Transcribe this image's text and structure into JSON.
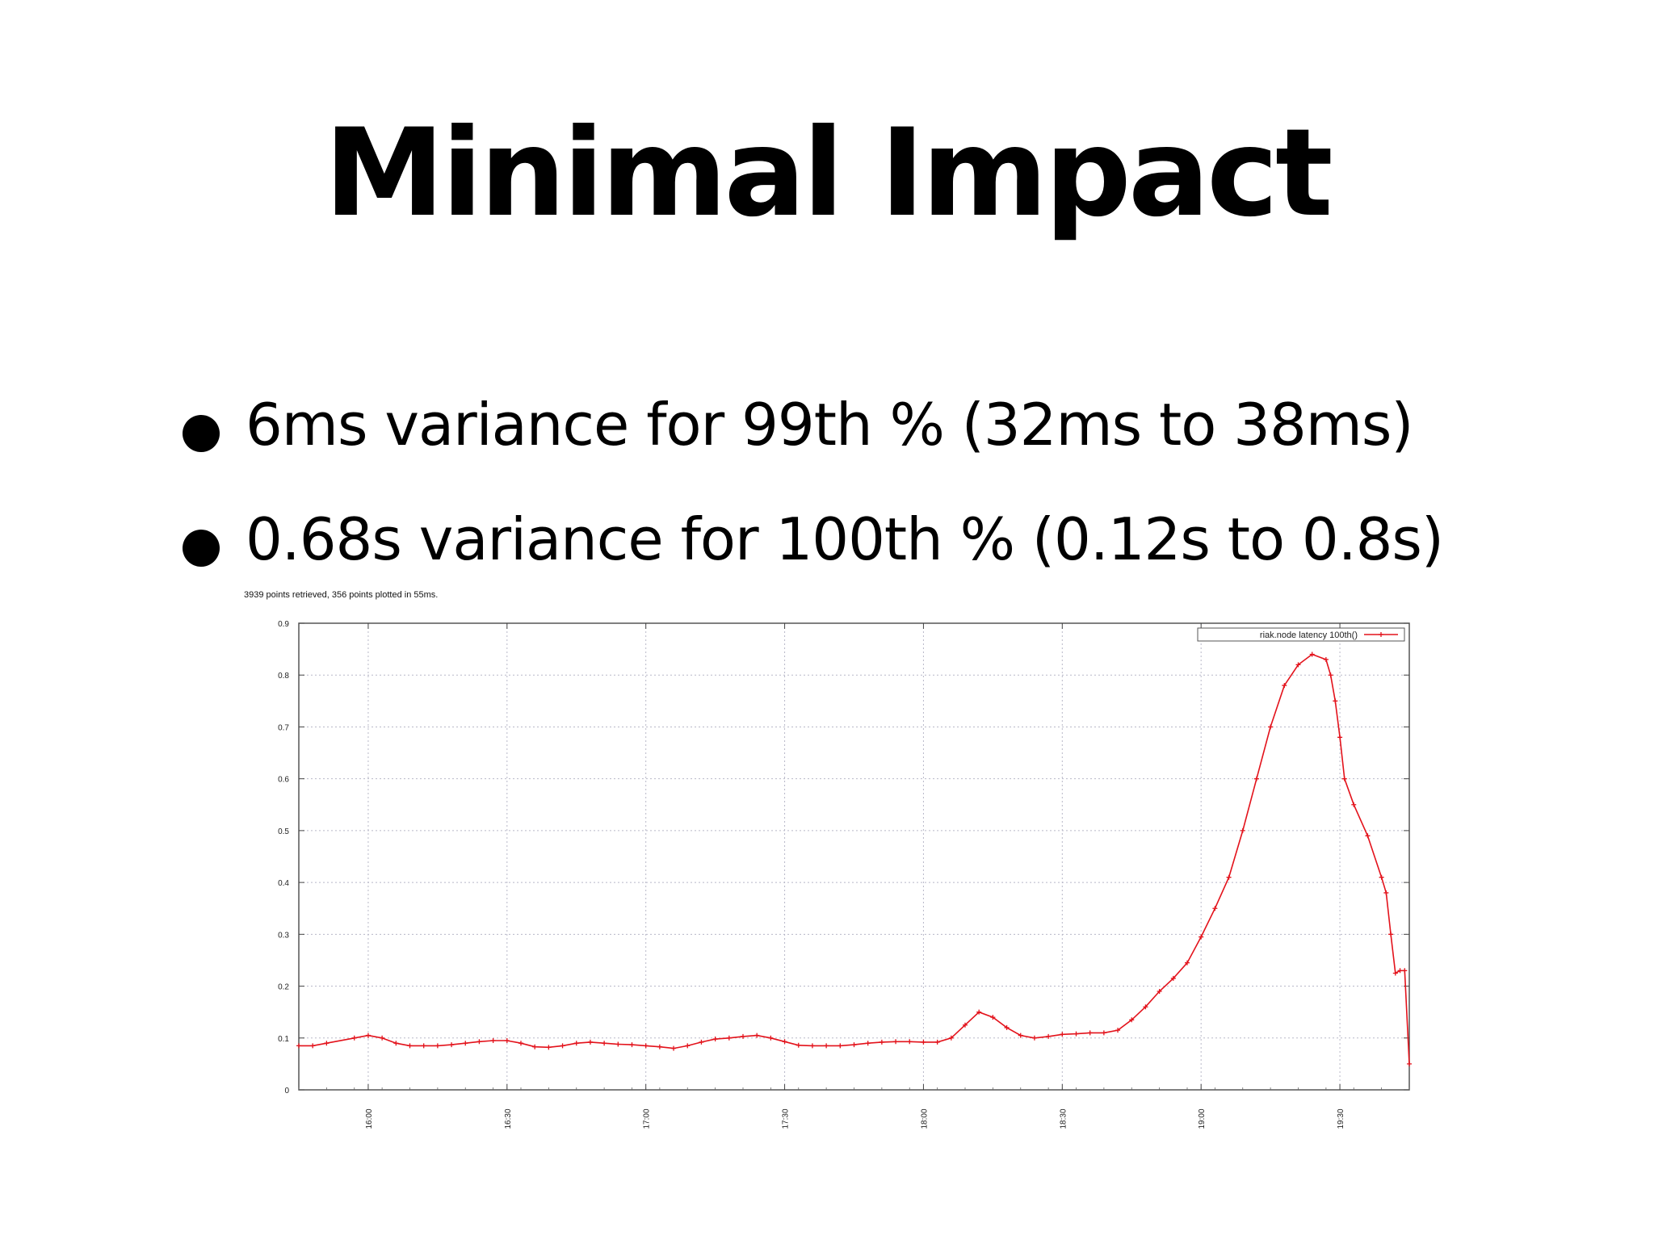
{
  "slide": {
    "title": "Minimal Impact",
    "bullets": [
      "6ms variance for 99th % (32ms to 38ms)",
      "0.68s variance for 100th % (0.12s to 0.8s)"
    ]
  },
  "chart_data": {
    "type": "line",
    "caption": "3939 points retrieved, 356 points plotted in 55ms.",
    "title": "",
    "xlabel": "",
    "ylabel": "",
    "x_tick_labels": [
      "16:00",
      "16:30",
      "17:00",
      "17:30",
      "18:00",
      "18:30",
      "19:00",
      "19:30"
    ],
    "y_tick_labels": [
      "0",
      "0.1",
      "0.2",
      "0.3",
      "0.4",
      "0.5",
      "0.6",
      "0.7",
      "0.8",
      "0.9"
    ],
    "xlim": [
      "15:45",
      "19:45"
    ],
    "ylim": [
      0,
      0.9
    ],
    "grid": true,
    "legend_position": "top-right",
    "series_color": "#e3121b",
    "series": [
      {
        "name": "riak.node latency 100th()",
        "x": [
          "15:45",
          "15:48",
          "15:51",
          "15:57",
          "16:00",
          "16:03",
          "16:06",
          "16:09",
          "16:12",
          "16:15",
          "16:18",
          "16:21",
          "16:24",
          "16:27",
          "16:30",
          "16:33",
          "16:36",
          "16:39",
          "16:42",
          "16:45",
          "16:48",
          "16:51",
          "16:54",
          "16:57",
          "17:00",
          "17:03",
          "17:06",
          "17:09",
          "17:12",
          "17:15",
          "17:18",
          "17:21",
          "17:24",
          "17:27",
          "17:30",
          "17:33",
          "17:36",
          "17:39",
          "17:42",
          "17:45",
          "17:48",
          "17:51",
          "17:54",
          "17:57",
          "18:00",
          "18:03",
          "18:06",
          "18:09",
          "18:12",
          "18:15",
          "18:18",
          "18:21",
          "18:24",
          "18:27",
          "18:30",
          "18:33",
          "18:36",
          "18:39",
          "18:42",
          "18:45",
          "18:48",
          "18:51",
          "18:54",
          "18:57",
          "19:00",
          "19:03",
          "19:06",
          "19:09",
          "19:12",
          "19:15",
          "19:18",
          "19:21",
          "19:24",
          "19:27",
          "19:28",
          "19:29",
          "19:30",
          "19:31",
          "19:33",
          "19:36",
          "19:39",
          "19:40",
          "19:41",
          "19:42",
          "19:43",
          "19:44",
          "19:45"
        ],
        "y": [
          0.085,
          0.085,
          0.09,
          0.1,
          0.105,
          0.1,
          0.09,
          0.085,
          0.085,
          0.085,
          0.087,
          0.09,
          0.093,
          0.095,
          0.095,
          0.09,
          0.083,
          0.082,
          0.085,
          0.09,
          0.092,
          0.09,
          0.088,
          0.087,
          0.085,
          0.083,
          0.08,
          0.085,
          0.092,
          0.098,
          0.1,
          0.103,
          0.105,
          0.1,
          0.093,
          0.086,
          0.085,
          0.085,
          0.085,
          0.087,
          0.09,
          0.092,
          0.093,
          0.093,
          0.092,
          0.092,
          0.1,
          0.125,
          0.15,
          0.14,
          0.12,
          0.105,
          0.1,
          0.103,
          0.107,
          0.108,
          0.11,
          0.11,
          0.115,
          0.135,
          0.16,
          0.19,
          0.215,
          0.245,
          0.295,
          0.35,
          0.41,
          0.5,
          0.6,
          0.7,
          0.78,
          0.82,
          0.84,
          0.83,
          0.8,
          0.75,
          0.68,
          0.6,
          0.55,
          0.49,
          0.41,
          0.38,
          0.3,
          0.225,
          0.23,
          0.23,
          0.05
        ]
      }
    ]
  }
}
